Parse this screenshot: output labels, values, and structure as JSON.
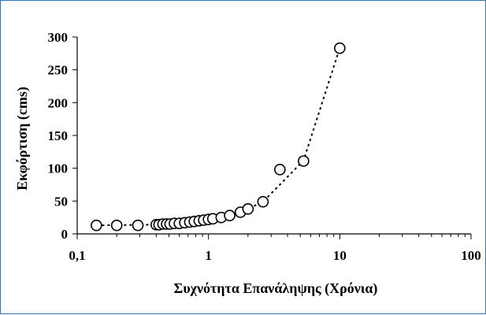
{
  "chart_data": {
    "type": "scatter",
    "title": "",
    "xlabel": "Συχνότητα Επανάληψης (Χρόνια)",
    "ylabel": "Εκφόρτιση (cms)",
    "x_scale": "log",
    "xlim": [
      0.1,
      100
    ],
    "ylim": [
      0,
      300
    ],
    "x_ticks": [
      0.1,
      1,
      10,
      100
    ],
    "x_tick_labels": [
      "0,1",
      "1",
      "10",
      "100"
    ],
    "y_ticks": [
      0,
      50,
      100,
      150,
      200,
      250,
      300
    ],
    "y_tick_labels": [
      "0",
      "50",
      "100",
      "150",
      "200",
      "250",
      "300"
    ],
    "grid": false,
    "legend": false,
    "series": [
      {
        "marker": "open-circle",
        "points": [
          {
            "x": 0.14,
            "y": 13
          },
          {
            "x": 0.2,
            "y": 13
          },
          {
            "x": 0.29,
            "y": 13
          },
          {
            "x": 0.4,
            "y": 14
          },
          {
            "x": 0.42,
            "y": 14
          },
          {
            "x": 0.45,
            "y": 15
          },
          {
            "x": 0.48,
            "y": 15
          },
          {
            "x": 0.51,
            "y": 15
          },
          {
            "x": 0.55,
            "y": 16
          },
          {
            "x": 0.6,
            "y": 16
          },
          {
            "x": 0.66,
            "y": 17
          },
          {
            "x": 0.72,
            "y": 18
          },
          {
            "x": 0.78,
            "y": 19
          },
          {
            "x": 0.85,
            "y": 20
          },
          {
            "x": 0.92,
            "y": 21
          },
          {
            "x": 1.0,
            "y": 22
          },
          {
            "x": 1.08,
            "y": 23
          },
          {
            "x": 1.25,
            "y": 25
          },
          {
            "x": 1.45,
            "y": 28
          },
          {
            "x": 1.75,
            "y": 33
          },
          {
            "x": 2.0,
            "y": 38
          },
          {
            "x": 2.6,
            "y": 49
          },
          {
            "x": 3.5,
            "y": 98
          },
          {
            "x": 5.3,
            "y": 111
          },
          {
            "x": 10,
            "y": 283
          }
        ],
        "trendline": {
          "style": "dotted",
          "points": [
            {
              "x": 0.14,
              "y": 13
            },
            {
              "x": 0.4,
              "y": 14
            },
            {
              "x": 1.0,
              "y": 22
            },
            {
              "x": 2.0,
              "y": 38
            },
            {
              "x": 2.6,
              "y": 49
            },
            {
              "x": 3.5,
              "y": 75
            },
            {
              "x": 5.3,
              "y": 112
            },
            {
              "x": 10,
              "y": 283
            }
          ]
        }
      }
    ]
  }
}
